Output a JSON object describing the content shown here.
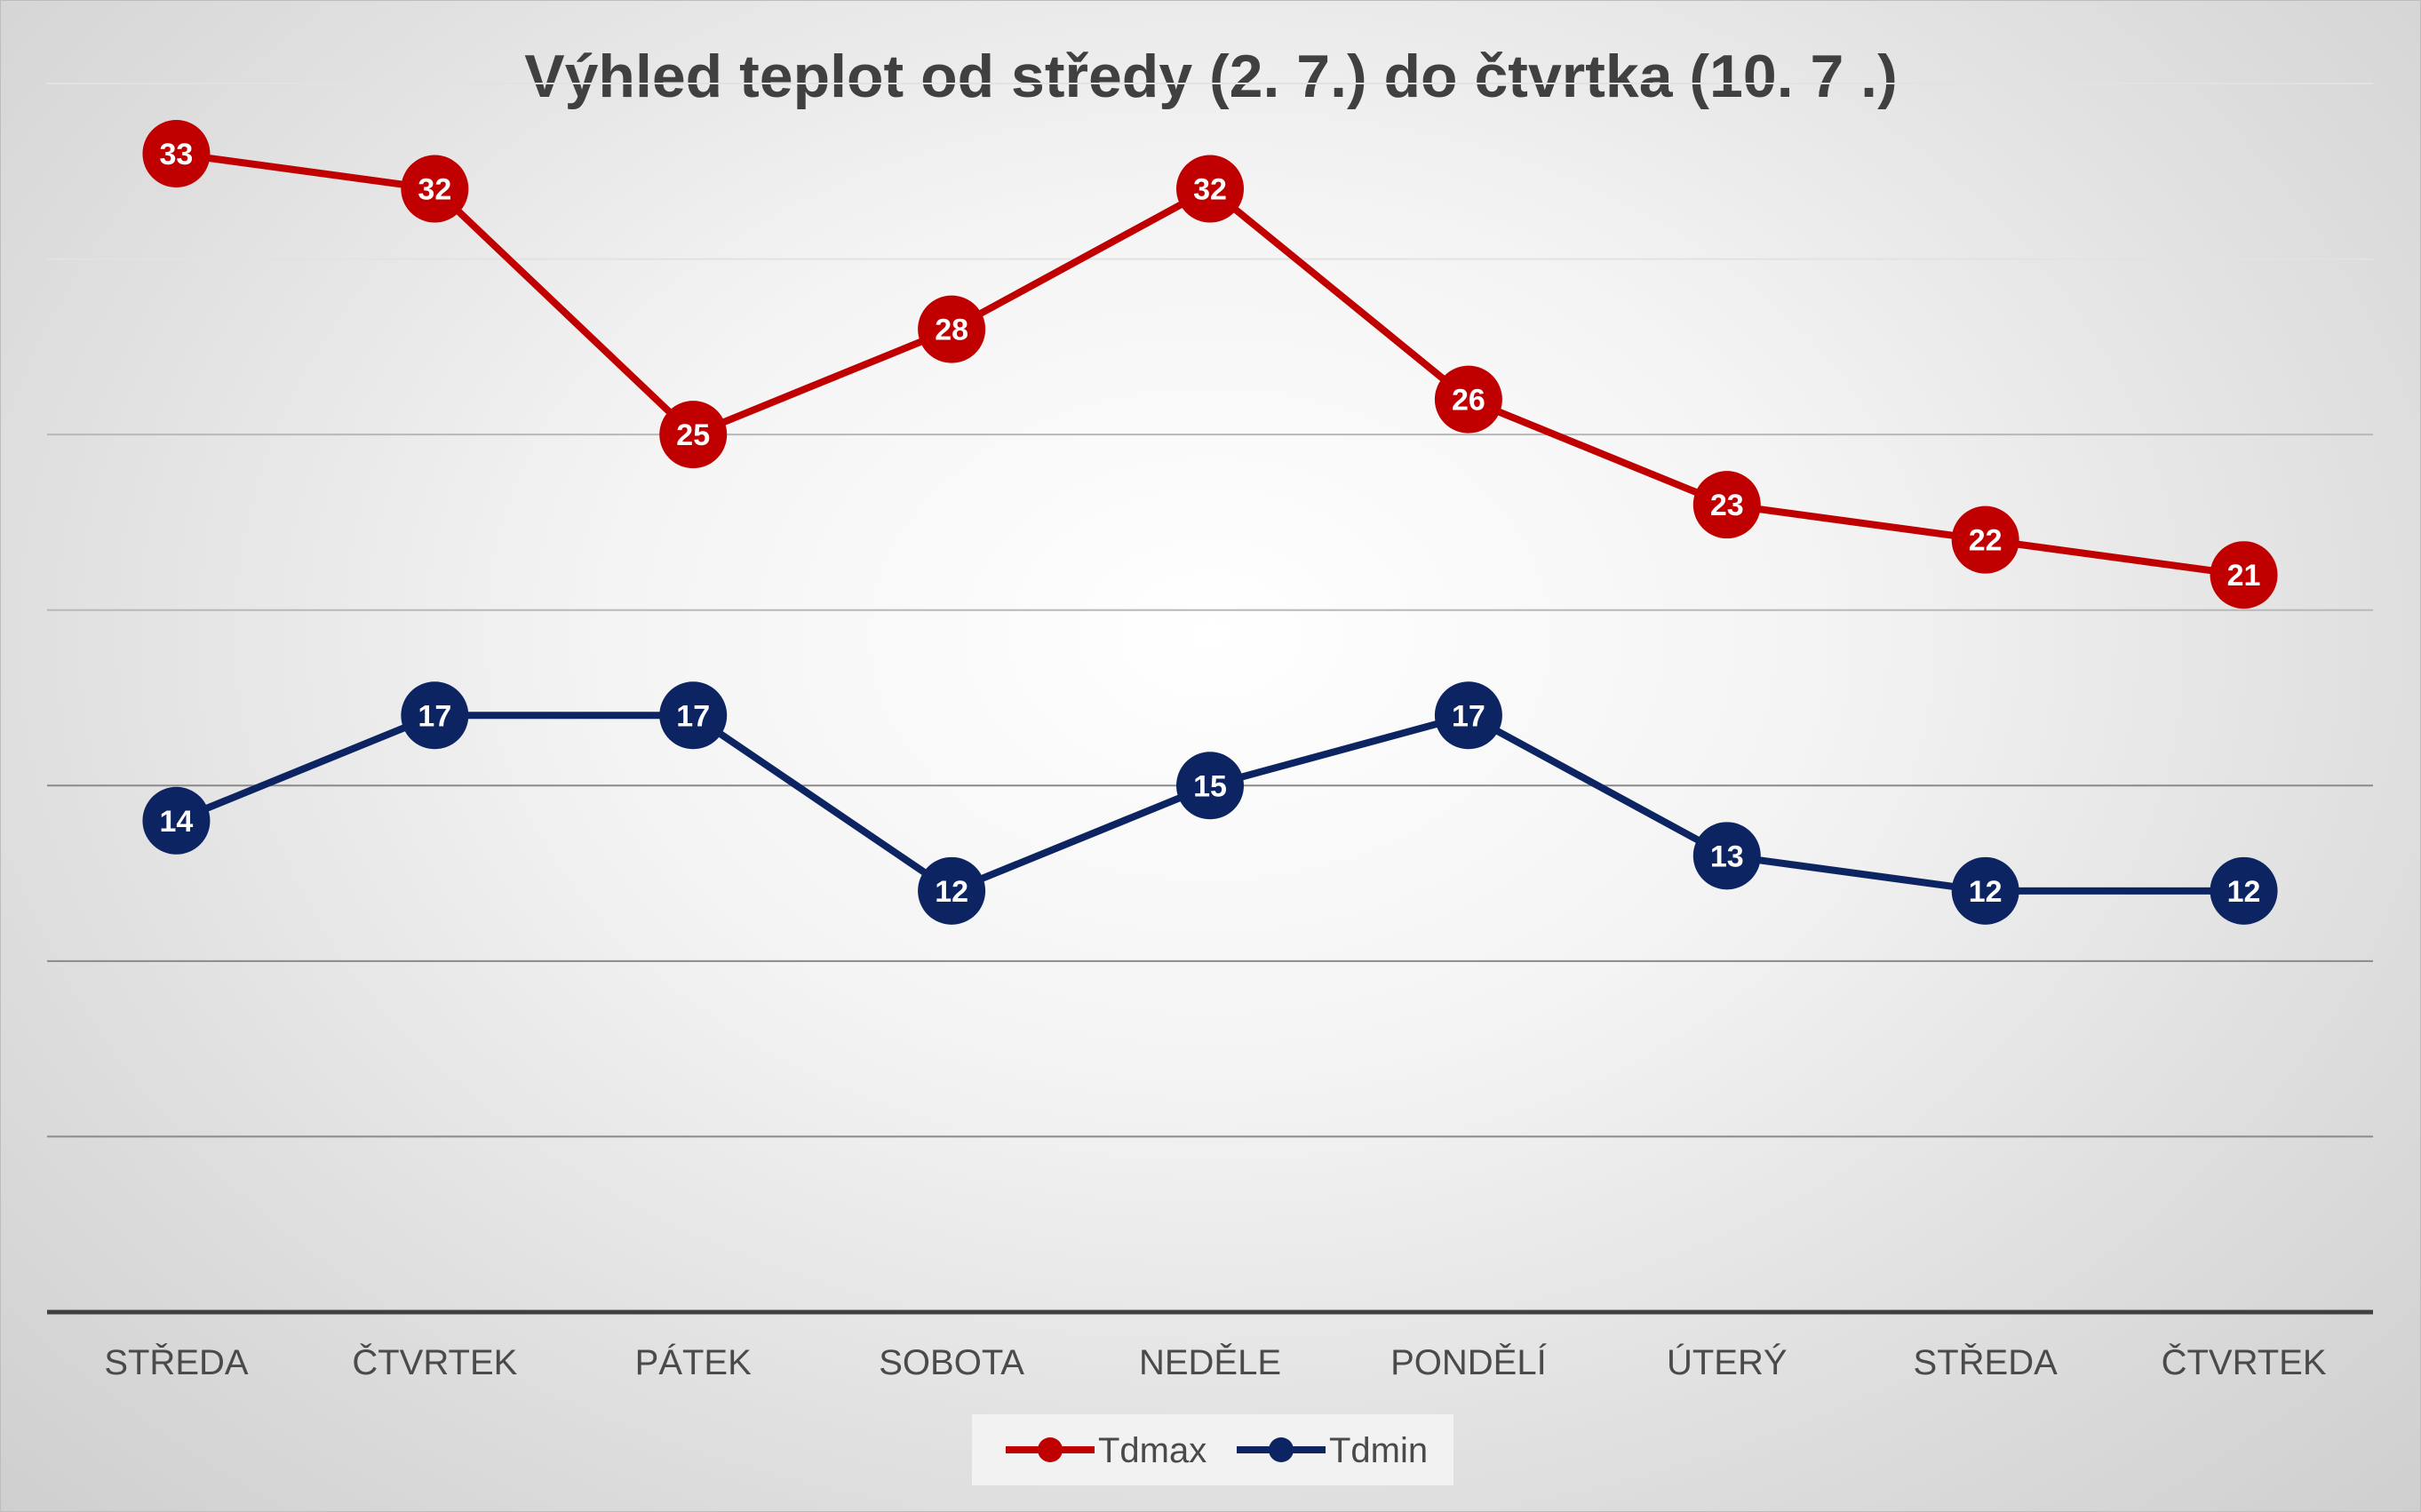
{
  "chart_data": {
    "type": "line",
    "title": "Výhled teplot od středy (2. 7.) do čtvrtka (10. 7 .)",
    "categories": [
      "STŘEDA",
      "ČTVRTEK",
      "PÁTEK",
      "SOBOTA",
      "NEDĚLE",
      "PONDĚLÍ",
      "ÚTERÝ",
      "STŘEDA",
      "ČTVRTEK"
    ],
    "series": [
      {
        "name": "Tdmax",
        "color": "#c00000",
        "values": [
          33,
          32,
          25,
          28,
          32,
          26,
          23,
          22,
          21
        ]
      },
      {
        "name": "Tdmin",
        "color": "#0d2462",
        "values": [
          14,
          17,
          17,
          12,
          15,
          17,
          13,
          12,
          12
        ]
      }
    ],
    "ylim": [
      0,
      35
    ],
    "y_gridline_step": 5,
    "y_tick_labels_shown": false,
    "grid": true,
    "legend_position": "bottom",
    "data_labels": "inside-markers"
  }
}
